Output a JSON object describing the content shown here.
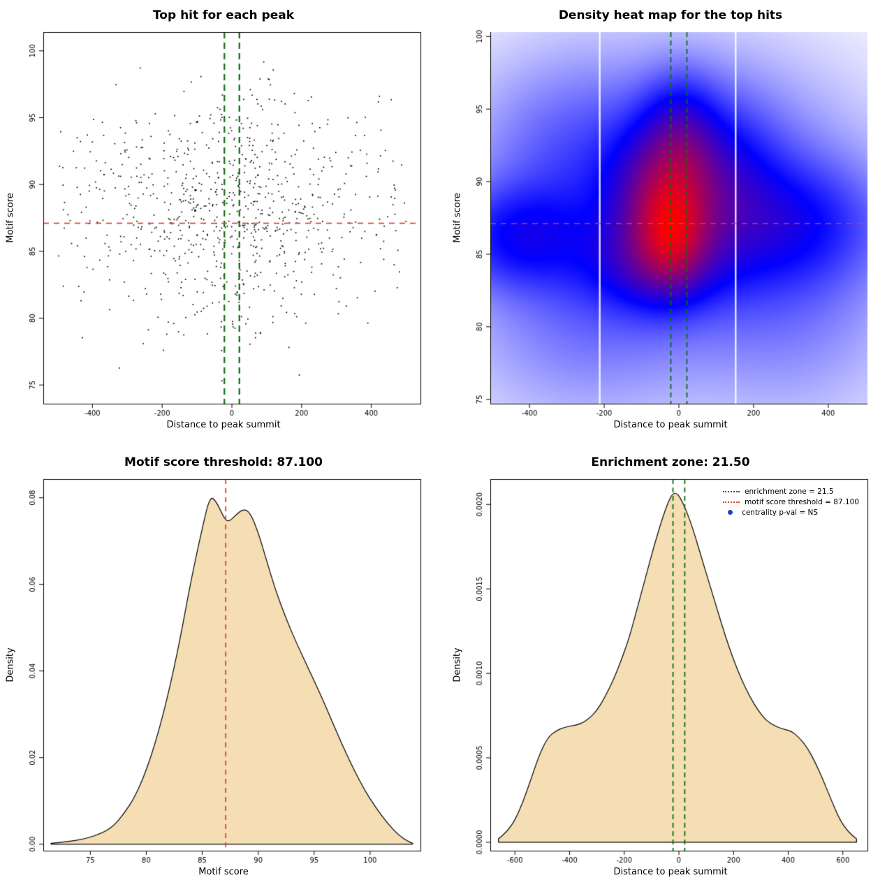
{
  "colors": {
    "background": "#ffffff",
    "red_line": "#e23d32",
    "green_line": "#0b6d0b",
    "wheat_fill": "#f5deb3",
    "curve_stroke": "#000000",
    "point": "#000000",
    "axis": "#000000",
    "heat_low": "#ffffff",
    "heat_mid": "#0000ff",
    "heat_high": "#ff0000",
    "legend_blue": "#2040c0"
  },
  "chart_data": [
    {
      "type": "scatter",
      "title": "Top hit for each peak",
      "xlabel": "Distance to peak summit",
      "ylabel": "Motif score",
      "xlim": [
        -541,
        541
      ],
      "ylim": [
        73.6,
        101.4
      ],
      "xticks": {
        "values": [
          -400,
          -200,
          0,
          200,
          400
        ],
        "labels": [
          "-400",
          "-200",
          "0",
          "200",
          "400"
        ]
      },
      "yticks": {
        "values": [
          75,
          80,
          85,
          90,
          95,
          100
        ],
        "labels": [
          "75",
          "80",
          "85",
          "90",
          "95",
          "100"
        ]
      },
      "hlines": [
        {
          "y": 87.1,
          "color_key": "red_line",
          "dash": [
            8,
            7
          ],
          "width": 1.6
        }
      ],
      "vlines": [
        {
          "x": -21.5,
          "color_key": "green_line",
          "dash": [
            9,
            6
          ],
          "width": 2.2
        },
        {
          "x": 21.5,
          "color_key": "green_line",
          "dash": [
            9,
            6
          ],
          "width": 2.2
        }
      ],
      "points": {
        "estimated": true,
        "seed": 1337,
        "n": 840,
        "marker_size": 1.7,
        "x_range": [
          -502,
          502
        ],
        "y_range": [
          74.4,
          100.6
        ],
        "x_components": [
          {
            "weight": 0.48,
            "mean": -15,
            "sd": 150
          },
          {
            "weight": 0.24,
            "mean": 20,
            "sd": 280
          },
          {
            "weight": 0.28,
            "min": -500,
            "max": 500
          }
        ],
        "y_components": [
          {
            "weight": 0.62,
            "mean": 87.2,
            "sd": 3.6
          },
          {
            "weight": 0.3,
            "mean": 91.5,
            "sd": 3.6
          },
          {
            "weight": 0.08,
            "mean": 82,
            "sd": 3.5
          }
        ]
      }
    },
    {
      "type": "heatmap",
      "title": "Density heat map for the top hits",
      "xlabel": "Distance to peak summit",
      "ylabel": "Motif score",
      "xlim": [
        -505,
        505
      ],
      "ylim": [
        74.7,
        100.3
      ],
      "xticks": {
        "values": [
          -400,
          -200,
          0,
          200,
          400
        ],
        "labels": [
          "-400",
          "-200",
          "0",
          "200",
          "400"
        ]
      },
      "yticks": {
        "values": [
          75,
          80,
          85,
          90,
          95,
          100
        ],
        "labels": [
          "75",
          "80",
          "85",
          "90",
          "95",
          "100"
        ]
      },
      "hlines": [
        {
          "y": 87.1,
          "color_key": "red_line",
          "dash": [
            8,
            7
          ],
          "width": 1.5
        }
      ],
      "vlines": [
        {
          "x": -21.5,
          "color_key": "green_line",
          "dash": [
            7,
            5
          ],
          "width": 1.8
        },
        {
          "x": 21.5,
          "color_key": "green_line",
          "dash": [
            7,
            5
          ],
          "width": 1.8
        }
      ],
      "colormap_keys": [
        "heat_low",
        "heat_mid",
        "heat_high"
      ],
      "color_split": 0.45,
      "gamma": 0.55,
      "gap_lines_x": [
        -212,
        152
      ],
      "density_blobs": [
        {
          "x": -35,
          "y": 88.6,
          "sx": 90,
          "sy": 3.3,
          "w": 1.0
        },
        {
          "x": -20,
          "y": 86.4,
          "sx": 58,
          "sy": 2.3,
          "w": 0.8
        },
        {
          "x": 5,
          "y": 92.8,
          "sx": 66,
          "sy": 2.7,
          "w": 0.5
        },
        {
          "x": -70,
          "y": 84.3,
          "sx": 120,
          "sy": 2.0,
          "w": 0.4
        },
        {
          "x": -430,
          "y": 86.2,
          "sx": 120,
          "sy": 2.3,
          "w": 0.45
        },
        {
          "x": 290,
          "y": 87.1,
          "sx": 160,
          "sy": 2.7,
          "w": 0.38
        },
        {
          "x": 10,
          "y": 88.6,
          "sx": 260,
          "sy": 5.4,
          "w": 0.38
        },
        {
          "x": 130,
          "y": 90.2,
          "sx": 95,
          "sy": 3.4,
          "w": 0.3
        },
        {
          "x": -250,
          "y": 81.0,
          "sx": 200,
          "sy": 4.5,
          "w": 0.16
        },
        {
          "x": 300,
          "y": 82.0,
          "sx": 180,
          "sy": 5.0,
          "w": 0.14
        },
        {
          "x": -300,
          "y": 92.0,
          "sx": 160,
          "sy": 4.0,
          "w": 0.15
        }
      ]
    },
    {
      "type": "area",
      "title": "Motif score threshold: 87.100",
      "xlabel": "Motif score",
      "ylabel": "Density",
      "threshold": 87.1,
      "xlim": [
        70.8,
        104.5
      ],
      "ylim": [
        -0.0015,
        0.0843
      ],
      "xticks": {
        "values": [
          75,
          80,
          85,
          90,
          95,
          100
        ],
        "labels": [
          "75",
          "80",
          "85",
          "90",
          "95",
          "100"
        ]
      },
      "yticks": {
        "values": [
          0,
          0.02,
          0.04,
          0.06,
          0.08
        ],
        "labels": [
          "0.00",
          "0.02",
          "0.04",
          "0.06",
          "0.08"
        ]
      },
      "vlines": [
        {
          "x": 87.1,
          "color_key": "red_line",
          "dash": [
            7,
            6
          ],
          "width": 1.8
        }
      ],
      "fill_key": "wheat_fill",
      "curve": [
        [
          71.5,
          0.0002
        ],
        [
          73,
          0.0006
        ],
        [
          74.5,
          0.0012
        ],
        [
          76,
          0.0025
        ],
        [
          77,
          0.004
        ],
        [
          78,
          0.007
        ],
        [
          79,
          0.011
        ],
        [
          80,
          0.017
        ],
        [
          81,
          0.025
        ],
        [
          82,
          0.035
        ],
        [
          83,
          0.047
        ],
        [
          84,
          0.061
        ],
        [
          85,
          0.073
        ],
        [
          85.7,
          0.0805
        ],
        [
          86.3,
          0.079
        ],
        [
          87,
          0.075
        ],
        [
          87.4,
          0.0745
        ],
        [
          88,
          0.076
        ],
        [
          88.7,
          0.0775
        ],
        [
          89.3,
          0.0765
        ],
        [
          90,
          0.072
        ],
        [
          90.7,
          0.066
        ],
        [
          91.5,
          0.059
        ],
        [
          92.5,
          0.052
        ],
        [
          93.5,
          0.046
        ],
        [
          94.5,
          0.0405
        ],
        [
          95.5,
          0.035
        ],
        [
          96.5,
          0.029
        ],
        [
          97.5,
          0.023
        ],
        [
          98.5,
          0.0175
        ],
        [
          99.5,
          0.0125
        ],
        [
          100.5,
          0.0085
        ],
        [
          101.5,
          0.005
        ],
        [
          102.5,
          0.0022
        ],
        [
          103.3,
          0.0008
        ],
        [
          103.8,
          0.0002
        ]
      ]
    },
    {
      "type": "area",
      "title": "Enrichment zone: 21.50",
      "xlabel": "Distance to peak summit",
      "ylabel": "Density",
      "enrichment_zone": 21.5,
      "xlim": [
        -690,
        690
      ],
      "ylim": [
        -5e-05,
        0.00215
      ],
      "xticks": {
        "values": [
          -600,
          -400,
          -200,
          0,
          200,
          400,
          600
        ],
        "labels": [
          "-600",
          "-400",
          "-200",
          "0",
          "200",
          "400",
          "600"
        ]
      },
      "yticks": {
        "values": [
          0,
          0.0005,
          0.001,
          0.0015,
          0.002
        ],
        "labels": [
          "0.0000",
          "0.0005",
          "0.0010",
          "0.0015",
          "0.0020"
        ]
      },
      "vlines": [
        {
          "x": -21.5,
          "color_key": "green_line",
          "dash": [
            7,
            5
          ],
          "width": 1.8
        },
        {
          "x": 21.5,
          "color_key": "green_line",
          "dash": [
            7,
            5
          ],
          "width": 1.8
        }
      ],
      "fill_key": "wheat_fill",
      "legend": [
        {
          "label": "enrichment zone = 21.5",
          "swatch": "dotted-line",
          "color_key": "green_line"
        },
        {
          "label": "motif score threshold = 87.100",
          "swatch": "dotted-line",
          "color_key": "red_line"
        },
        {
          "label": "centrality p-val = NS",
          "swatch": "dot",
          "color_key": "legend_blue"
        }
      ],
      "curve": [
        [
          -660,
          2e-05
        ],
        [
          -630,
          6e-05
        ],
        [
          -600,
          0.00013
        ],
        [
          -570,
          0.00024
        ],
        [
          -540,
          0.00038
        ],
        [
          -510,
          0.00052
        ],
        [
          -480,
          0.00062
        ],
        [
          -450,
          0.00066
        ],
        [
          -420,
          0.00068
        ],
        [
          -390,
          0.00069
        ],
        [
          -360,
          0.0007
        ],
        [
          -330,
          0.00073
        ],
        [
          -300,
          0.00078
        ],
        [
          -270,
          0.00086
        ],
        [
          -240,
          0.00096
        ],
        [
          -210,
          0.00108
        ],
        [
          -180,
          0.00122
        ],
        [
          -150,
          0.0014
        ],
        [
          -120,
          0.00158
        ],
        [
          -90,
          0.00176
        ],
        [
          -60,
          0.00192
        ],
        [
          -40,
          0.00201
        ],
        [
          -25,
          0.00206
        ],
        [
          -10,
          0.00207
        ],
        [
          5,
          0.00204
        ],
        [
          20,
          0.00199
        ],
        [
          40,
          0.00191
        ],
        [
          60,
          0.00181
        ],
        [
          80,
          0.0017
        ],
        [
          110,
          0.00154
        ],
        [
          140,
          0.00138
        ],
        [
          170,
          0.00122
        ],
        [
          200,
          0.00108
        ],
        [
          230,
          0.00096
        ],
        [
          260,
          0.00086
        ],
        [
          290,
          0.00078
        ],
        [
          320,
          0.00072
        ],
        [
          350,
          0.00069
        ],
        [
          380,
          0.00067
        ],
        [
          410,
          0.00066
        ],
        [
          440,
          0.00062
        ],
        [
          470,
          0.00056
        ],
        [
          500,
          0.00047
        ],
        [
          530,
          0.00036
        ],
        [
          560,
          0.00024
        ],
        [
          590,
          0.00013
        ],
        [
          620,
          6e-05
        ],
        [
          650,
          2e-05
        ]
      ]
    }
  ]
}
